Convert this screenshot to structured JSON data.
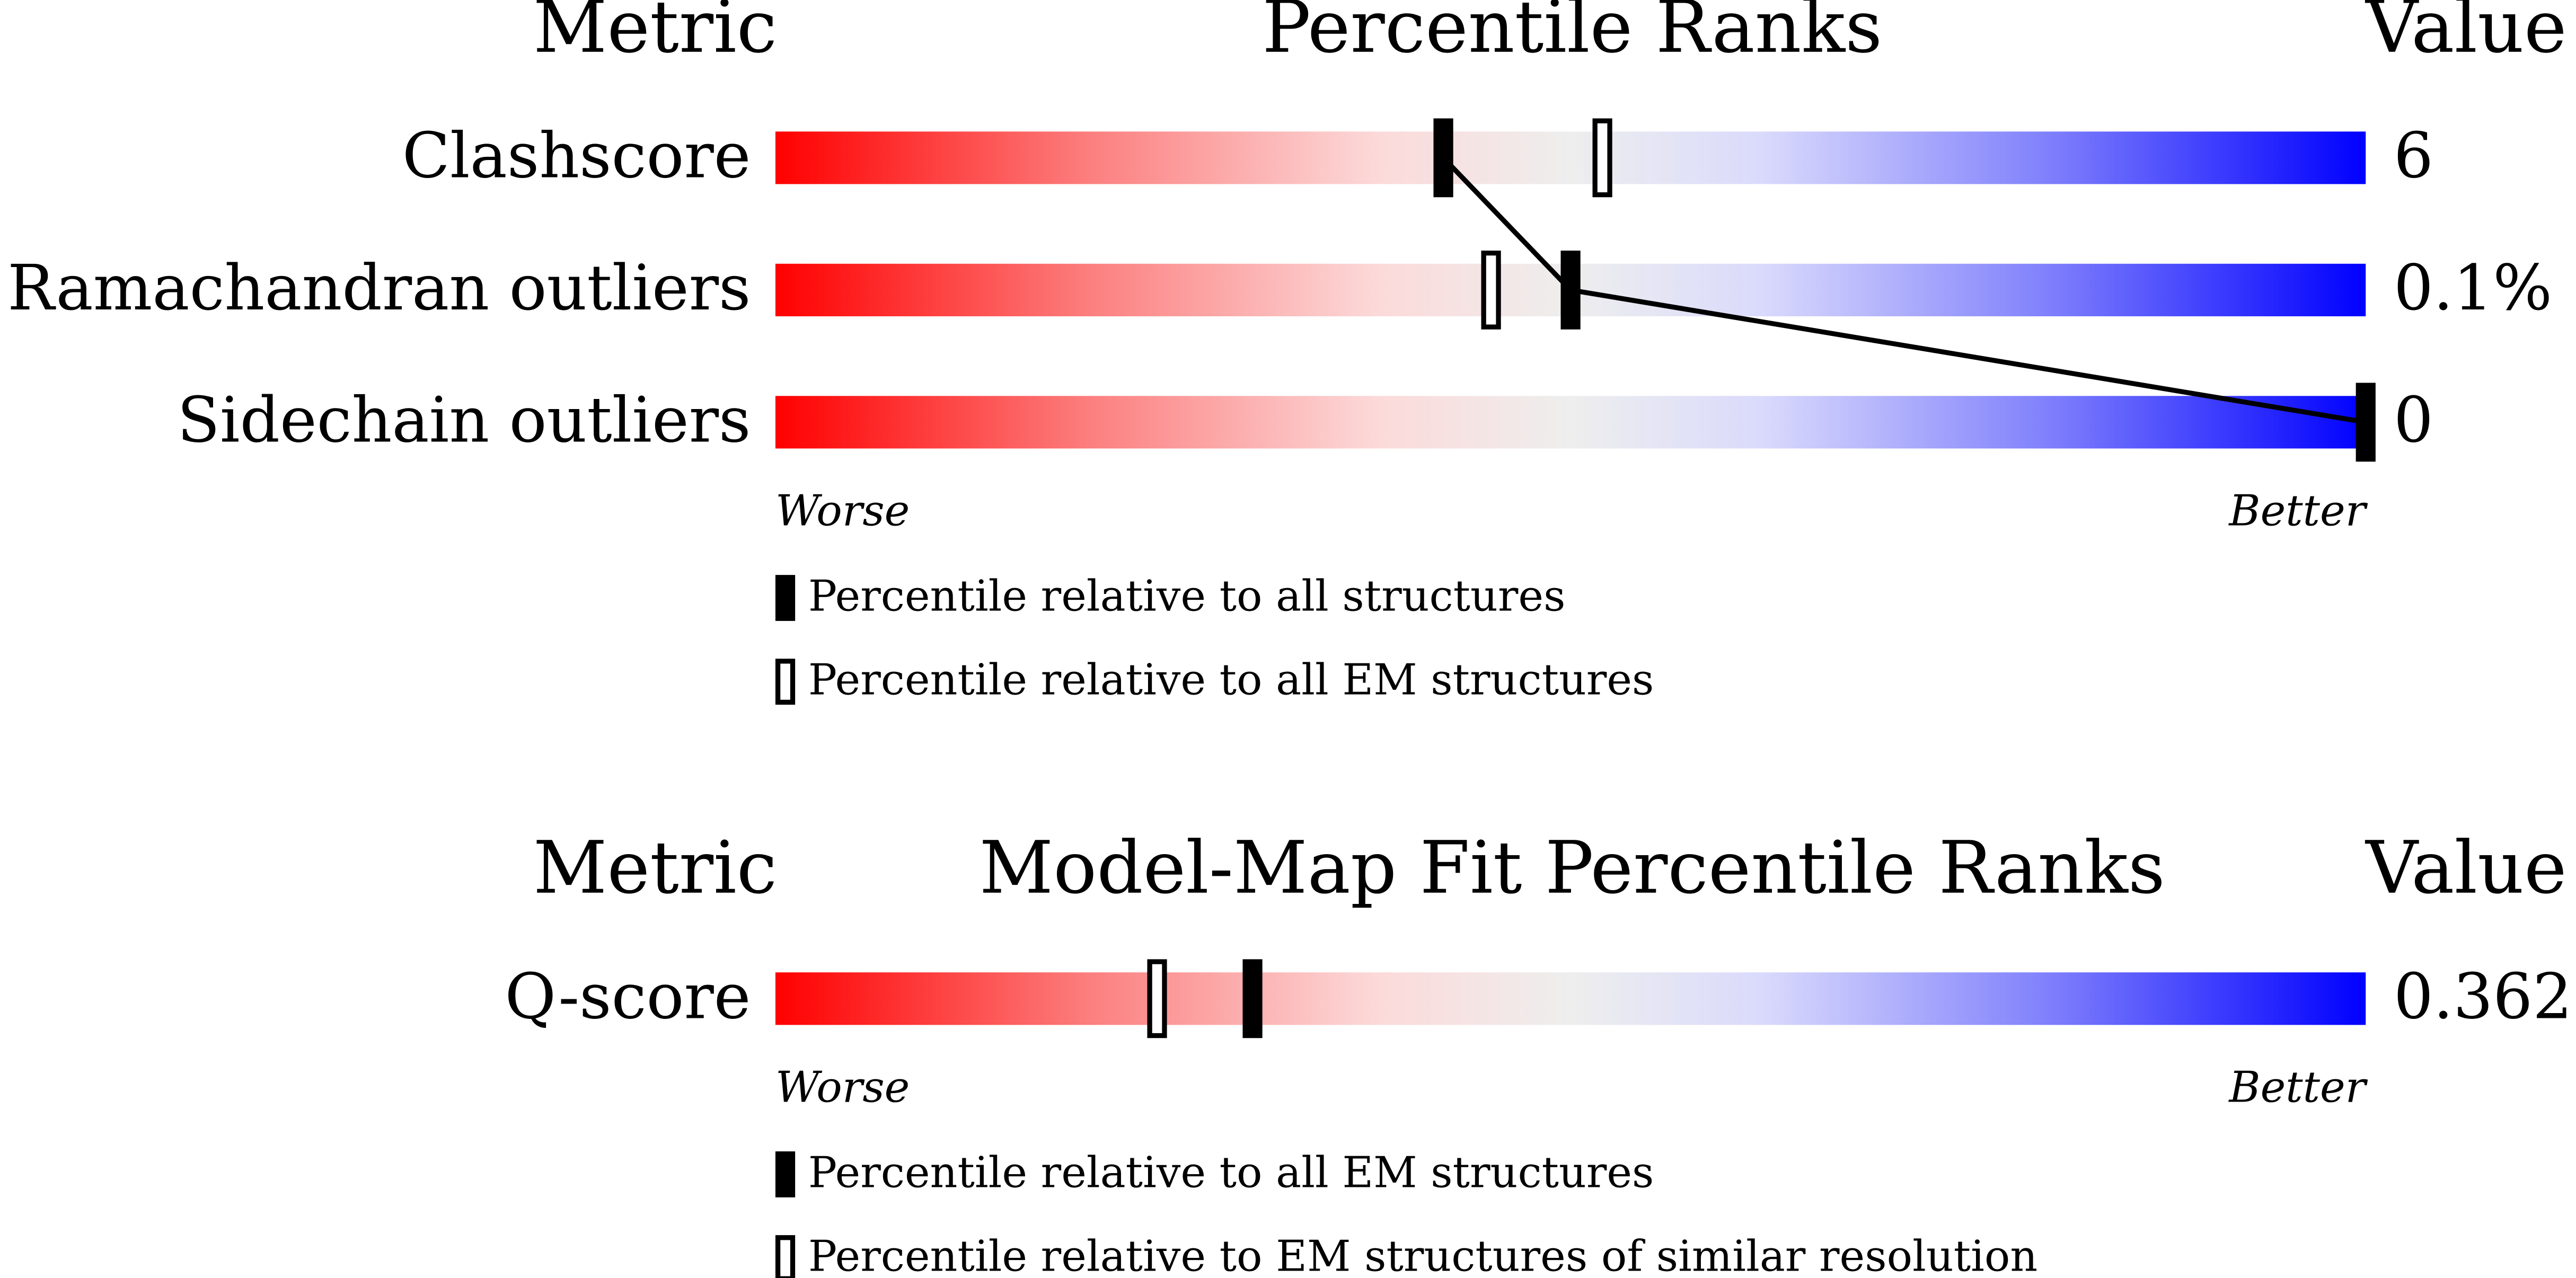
{
  "chart_data": [
    {
      "type": "percentile_slider",
      "title": "Percentile Ranks",
      "metric_header": "Metric",
      "value_header": "Value",
      "categories": [
        "Clashscore",
        "Ramachandran outliers",
        "Sidechain outliers"
      ],
      "metric_values": [
        "6",
        "0.1%",
        "0"
      ],
      "xlim": [
        0,
        100
      ],
      "low_label": "Worse",
      "high_label": "Better",
      "series": [
        {
          "name": "Percentile relative to all structures",
          "style": "filled",
          "color": "#000000",
          "values": [
            42,
            50,
            100
          ]
        },
        {
          "name": "Percentile relative to all EM structures",
          "style": "open",
          "color": "#000000",
          "values": [
            52,
            45,
            null
          ]
        }
      ]
    },
    {
      "type": "percentile_slider",
      "title": "Model-Map Fit Percentile Ranks",
      "metric_header": "Metric",
      "value_header": "Value",
      "categories": [
        "Q-score"
      ],
      "metric_values": [
        "0.362"
      ],
      "xlim": [
        0,
        100
      ],
      "low_label": "Worse",
      "high_label": "Better",
      "series": [
        {
          "name": "Percentile relative to all EM structures",
          "style": "filled",
          "color": "#000000",
          "values": [
            30
          ]
        },
        {
          "name": "Percentile relative to EM structures of similar resolution",
          "style": "open",
          "color": "#000000",
          "values": [
            24
          ]
        }
      ]
    }
  ]
}
